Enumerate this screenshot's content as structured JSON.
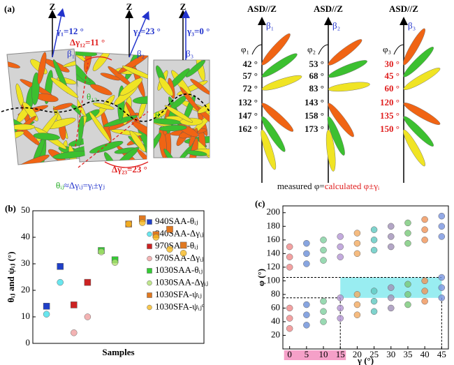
{
  "panel_a": {
    "label": "(a)",
    "left": {
      "z_labels": [
        "Z",
        "Z",
        "Z"
      ],
      "gamma_labels": [
        "γ₁=12 °",
        "γ₂=23 °",
        "γ₃=0 °"
      ],
      "gammas": [
        12,
        23,
        0
      ],
      "beta_labels": [
        "β₁",
        "β₂",
        "β₃"
      ],
      "delta12": "Δγ₁₂=11 °",
      "delta23": "Δγ₂₃=23 °",
      "theta12": "θ₁₂",
      "theta23": "θ₂₃",
      "formula_lhs": "θᵢⱼ",
      "formula_rhs": "≈Δγᵢⱼ=γᵢ±γⱼ"
    },
    "right": {
      "columns": [
        {
          "title": "ASD//Z",
          "beta": "β₁",
          "phi": "φ₁",
          "label_color": "#111111",
          "angles": [
            {
              "value": 42,
              "label": "42 °"
            },
            {
              "value": 57,
              "label": "57 °"
            },
            {
              "value": 72,
              "label": "72 °"
            },
            {
              "value": 132,
              "label": "132 °"
            },
            {
              "value": 147,
              "label": "147 °"
            },
            {
              "value": 162,
              "label": "162 °"
            }
          ]
        },
        {
          "title": "ASD//Z",
          "beta": "β₂",
          "phi": "φ₂",
          "label_color": "#111111",
          "angles": [
            {
              "value": 53,
              "label": "53 °"
            },
            {
              "value": 68,
              "label": "68 °"
            },
            {
              "value": 83,
              "label": "83 °"
            },
            {
              "value": 143,
              "label": "143 °"
            },
            {
              "value": 158,
              "label": "158 °"
            },
            {
              "value": 173,
              "label": "173 °"
            }
          ]
        },
        {
          "title": "ASD//Z",
          "beta": "β₃",
          "phi": "φ₃",
          "label_color": "#e02020",
          "angles": [
            {
              "value": 30,
              "label": "30 °"
            },
            {
              "value": 45,
              "label": "45 °"
            },
            {
              "value": 60,
              "label": "60 °"
            },
            {
              "value": 120,
              "label": "120 °"
            },
            {
              "value": 135,
              "label": "135 °"
            },
            {
              "value": 150,
              "label": "150 °"
            }
          ]
        }
      ],
      "caption_black": "measured φ=",
      "caption_red": "calculated φ±γᵢ"
    }
  },
  "chart_data": [
    {
      "type": "scatter",
      "panel_label": "(b)",
      "x_label": "Samples",
      "y_label": "θᵢⱼ and ψᵢⱼ (°)",
      "xlim": [
        0,
        12.5
      ],
      "ylim": [
        0,
        50
      ],
      "yticks": [
        0,
        10,
        20,
        30,
        40,
        50
      ],
      "series": [
        {
          "name": "940SAA-θᵢⱼ",
          "marker": "square",
          "color": "#1f3fc8",
          "x": [
            1,
            2
          ],
          "values": [
            14,
            29
          ]
        },
        {
          "name": "940SAA-Δγᵢⱼ",
          "marker": "circle",
          "color": "#44e0ea",
          "x": [
            1,
            2
          ],
          "values": [
            11,
            23
          ]
        },
        {
          "name": "970SAA-θᵢⱼ",
          "marker": "square",
          "color": "#cc2222",
          "x": [
            3,
            4
          ],
          "values": [
            14.5,
            23
          ]
        },
        {
          "name": "970SAA-Δγᵢⱼ",
          "marker": "circle",
          "color": "#f0a0a0",
          "x": [
            3,
            4
          ],
          "values": [
            4,
            10
          ]
        },
        {
          "name": "1030SAA-θᵢⱼ",
          "marker": "square",
          "color": "#33cc33",
          "x": [
            5,
            6
          ],
          "values": [
            35,
            31.5
          ]
        },
        {
          "name": "1030SAA-Δγᵢⱼ",
          "marker": "circle",
          "color": "#b0e070",
          "x": [
            5,
            6
          ],
          "values": [
            34.5,
            30.5
          ]
        },
        {
          "name": "1030SFA-ψᵢⱼ",
          "marker": "square",
          "color": "#e07820",
          "x": [
            7,
            8,
            9,
            10,
            11
          ],
          "values": [
            45,
            47,
            41,
            43,
            37
          ]
        },
        {
          "name": "1030SFA-ψᵢⱼᶜ",
          "marker": "circle",
          "color": "#f5b820",
          "x": [
            7,
            8,
            9,
            10,
            11
          ],
          "values": [
            45,
            45.5,
            40,
            35.5,
            34
          ]
        }
      ]
    },
    {
      "type": "scatter",
      "panel_label": "(c)",
      "x_label": "γ (°)",
      "y_label": "φ (°)",
      "xlim": [
        -2,
        47
      ],
      "ylim": [
        0,
        210
      ],
      "xticks": [
        0,
        5,
        10,
        15,
        20,
        25,
        30,
        35,
        40,
        45
      ],
      "yticks": [
        20,
        40,
        60,
        80,
        100,
        120,
        140,
        160,
        180,
        200
      ],
      "highlight": {
        "x": [
          15,
          45
        ],
        "y": [
          75,
          105
        ]
      },
      "x_band": [
        0,
        15
      ],
      "series": [
        {
          "color": "#f08a8a",
          "x": [
            0,
            0,
            0,
            0,
            0,
            0
          ],
          "values": [
            30,
            45,
            60,
            120,
            135,
            150
          ]
        },
        {
          "color": "#6a8fd8",
          "x": [
            5,
            5,
            5,
            5,
            5,
            5
          ],
          "values": [
            35,
            50,
            65,
            125,
            140,
            155
          ]
        },
        {
          "color": "#7fcf9f",
          "x": [
            10,
            10,
            10,
            10,
            10,
            10
          ],
          "values": [
            40,
            55,
            70,
            130,
            145,
            160
          ]
        },
        {
          "color": "#b495d4",
          "x": [
            15,
            15,
            15,
            15,
            15,
            15
          ],
          "values": [
            45,
            60,
            75,
            135,
            150,
            165
          ]
        },
        {
          "color": "#f2aa60",
          "x": [
            20,
            20,
            20,
            20,
            20,
            20
          ],
          "values": [
            50,
            65,
            80,
            140,
            155,
            170
          ]
        },
        {
          "color": "#5fc8c0",
          "x": [
            25,
            25,
            25,
            25,
            25,
            25
          ],
          "values": [
            55,
            70,
            85,
            145,
            160,
            175
          ]
        },
        {
          "color": "#a090b8",
          "x": [
            30,
            30,
            30,
            30,
            30,
            30
          ],
          "values": [
            60,
            75,
            90,
            150,
            165,
            180
          ]
        },
        {
          "color": "#78c878",
          "x": [
            35,
            35,
            35,
            35,
            35,
            35
          ],
          "values": [
            65,
            80,
            95,
            155,
            170,
            185
          ]
        },
        {
          "color": "#f09458",
          "x": [
            40,
            40,
            40,
            40,
            40,
            40
          ],
          "values": [
            70,
            85,
            100,
            160,
            175,
            190
          ]
        },
        {
          "color": "#7894e0",
          "x": [
            45,
            45,
            45,
            45,
            45,
            45
          ],
          "values": [
            75,
            90,
            105,
            165,
            180,
            195
          ]
        }
      ]
    }
  ]
}
